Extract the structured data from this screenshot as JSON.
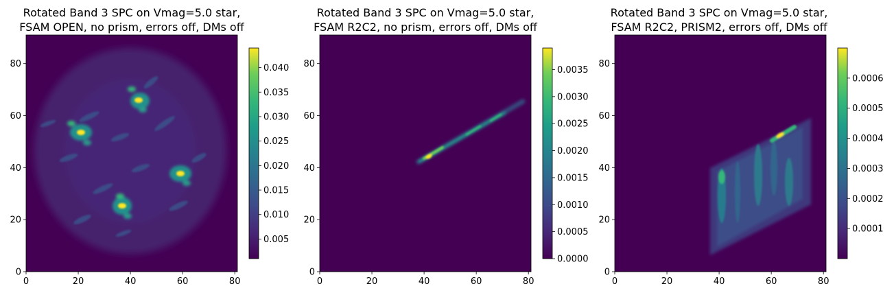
{
  "chart_data": [
    {
      "type": "heatmap",
      "title_lines": [
        "Rotated Band 3 SPC on Vmag=5.0 star,",
        "FSAM OPEN, no prism, errors off, DMs off"
      ],
      "xlim": [
        0,
        81
      ],
      "ylim": [
        0,
        91
      ],
      "x_ticks": [
        "0",
        "20",
        "40",
        "60",
        "80"
      ],
      "y_ticks": [
        "0",
        "20",
        "40",
        "60",
        "80"
      ],
      "colorbar": {
        "range": [
          0.001,
          0.044
        ],
        "ticks": [
          "0.005",
          "0.010",
          "0.015",
          "0.020",
          "0.025",
          "0.030",
          "0.035",
          "0.040"
        ]
      },
      "peaks": [
        {
          "x": 43,
          "y": 66,
          "value": 0.042
        },
        {
          "x": 20,
          "y": 53,
          "value": 0.038
        },
        {
          "x": 60,
          "y": 37,
          "value": 0.036
        },
        {
          "x": 38,
          "y": 25,
          "value": 0.037
        }
      ]
    },
    {
      "type": "heatmap",
      "title_lines": [
        "Rotated Band 3 SPC on Vmag=5.0 star,",
        "FSAM R2C2, no prism, errors off, DMs off"
      ],
      "xlim": [
        0,
        81
      ],
      "ylim": [
        0,
        91
      ],
      "x_ticks": [
        "0",
        "20",
        "40",
        "60",
        "80"
      ],
      "y_ticks": [
        "0",
        "20",
        "40",
        "60",
        "80"
      ],
      "colorbar": {
        "range": [
          0,
          0.0039
        ],
        "ticks": [
          "0.0000",
          "0.0005",
          "0.0010",
          "0.0015",
          "0.0020",
          "0.0025",
          "0.0030",
          "0.0035"
        ]
      },
      "streak": {
        "from": [
          38,
          41
        ],
        "to": [
          78,
          65
        ],
        "peak": [
          42,
          44
        ],
        "peak_value": 0.0038
      }
    },
    {
      "type": "heatmap",
      "title_lines": [
        "Rotated Band 3 SPC on Vmag=5.0 star,",
        "FSAM R2C2, PRISM2, errors off, DMs off"
      ],
      "xlim": [
        0,
        81
      ],
      "ylim": [
        0,
        91
      ],
      "x_ticks": [
        "0",
        "20",
        "40",
        "60",
        "80"
      ],
      "y_ticks": [
        "0",
        "20",
        "40",
        "60",
        "80"
      ],
      "colorbar": {
        "range": [
          0,
          0.0007
        ],
        "ticks": [
          "0.0001",
          "0.0002",
          "0.0003",
          "0.0004",
          "0.0005",
          "0.0006"
        ]
      },
      "peak": {
        "x": 64,
        "y": 53,
        "value": 0.00068
      }
    }
  ]
}
